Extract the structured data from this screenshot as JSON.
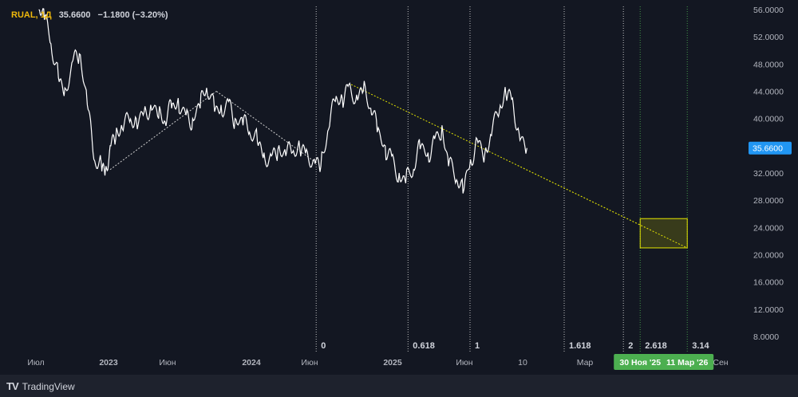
{
  "header": {
    "symbol": "RUAL, 1Д",
    "price": "35.6600",
    "change": "−1.1800 (−3.20%)"
  },
  "brand": {
    "name": "TradingView",
    "icon": "tradingview-logo-icon"
  },
  "colors": {
    "background": "#131722",
    "price_line": "#ffffff",
    "price_tag": "#2196f3",
    "fib_line": "#e6e600",
    "time_tag": "#4caf50",
    "box": "#e6e600"
  },
  "chart_data": {
    "type": "line",
    "series": [
      {
        "x": [
          "2022-05-20",
          "2022-06-01",
          "2022-06-15",
          "2022-07-01",
          "2022-07-15",
          "2022-08-01",
          "2022-08-15",
          "2022-09-01",
          "2022-09-15",
          "2022-10-01",
          "2022-10-10",
          "2022-10-20",
          "2022-11-01",
          "2022-11-15",
          "2022-12-01",
          "2022-12-15",
          "2023-01-01",
          "2023-01-15",
          "2023-02-01",
          "2023-02-15",
          "2023-03-01",
          "2023-03-15",
          "2023-04-01",
          "2023-04-15",
          "2023-05-01",
          "2023-05-15",
          "2023-06-01",
          "2023-06-15",
          "2023-07-01",
          "2023-07-15",
          "2023-08-01",
          "2023-08-15",
          "2023-09-01",
          "2023-09-15",
          "2023-10-01",
          "2023-10-15",
          "2023-11-01",
          "2023-11-15",
          "2023-12-01",
          "2023-12-15",
          "2024-01-01",
          "2024-01-15",
          "2024-02-01",
          "2024-02-15",
          "2024-03-01",
          "2024-03-15",
          "2024-04-01",
          "2024-04-15",
          "2024-05-01",
          "2024-05-15",
          "2024-06-01",
          "2024-06-15",
          "2024-07-01",
          "2024-07-15",
          "2024-08-01",
          "2024-08-15",
          "2024-09-01",
          "2024-09-15",
          "2024-10-01",
          "2024-10-15",
          "2024-11-01",
          "2024-11-15",
          "2024-12-01",
          "2024-12-15",
          "2025-01-01",
          "2025-01-15",
          "2025-02-01",
          "2025-02-15",
          "2025-03-01",
          "2025-03-15",
          "2025-04-01"
        ],
        "values": [
          56.0,
          54.5,
          51.0,
          46.0,
          44.5,
          48.5,
          49.5,
          42.0,
          34.0,
          33.5,
          32.5,
          36.0,
          37.0,
          38.5,
          39.5,
          40.0,
          41.0,
          42.0,
          40.0,
          39.5,
          41.5,
          43.0,
          40.5,
          40.0,
          41.5,
          44.5,
          41.0,
          42.0,
          42.5,
          40.0,
          39.0,
          38.0,
          36.5,
          35.0,
          34.5,
          35.5,
          34.5,
          35.0,
          35.5,
          35.5,
          34.0,
          33.0,
          38.5,
          42.5,
          43.0,
          45.0,
          43.5,
          44.0,
          41.5,
          38.0,
          36.0,
          34.5,
          32.0,
          30.5,
          32.5,
          35.5,
          35.0,
          37.0,
          39.0,
          33.0,
          31.0,
          29.0,
          34.0,
          37.0,
          35.0,
          37.5,
          41.0,
          43.5,
          43.0,
          38.0,
          35.66
        ]
      }
    ],
    "trend_lines": [
      {
        "x": [
          "2022-10-20",
          "2023-06-05"
        ],
        "values": [
          32.5,
          44.0
        ]
      },
      {
        "x": [
          "2023-06-05",
          "2024-01-05"
        ],
        "values": [
          44.0,
          33.5
        ]
      },
      {
        "x": [
          "2024-03-20",
          "2026-03-11"
        ],
        "values": [
          45.0,
          21.0
        ]
      }
    ],
    "target_box": {
      "x": [
        "2025-11-30",
        "2026-03-11"
      ],
      "y": [
        21.0,
        25.3
      ]
    },
    "fib_time_levels": [
      {
        "label": "0",
        "date": "2024-01-05"
      },
      {
        "label": "0.618",
        "date": "2024-07-20"
      },
      {
        "label": "1",
        "date": "2024-11-30"
      },
      {
        "label": "1.618",
        "date": "2025-06-20"
      },
      {
        "label": "2",
        "date": "2025-10-25"
      },
      {
        "label": "2.618",
        "date": "2025-11-30"
      },
      {
        "label": "3.14",
        "date": "2026-03-11"
      }
    ],
    "y_ticks": [
      "56.0000",
      "52.0000",
      "48.0000",
      "44.0000",
      "40.0000",
      "36.0000",
      "32.0000",
      "28.0000",
      "24.0000",
      "20.0000",
      "16.0000",
      "12.0000",
      "8.0000"
    ],
    "x_ticks": [
      "Июл",
      "2023",
      "Июн",
      "2024",
      "Июн",
      "2025",
      "Июн",
      "10",
      "Мар",
      "Май",
      "Сен"
    ],
    "current_price": "35.6600",
    "time_tags": [
      "30 Ноя '25",
      "11 Мар '26"
    ],
    "ylim": [
      5,
      57
    ]
  }
}
